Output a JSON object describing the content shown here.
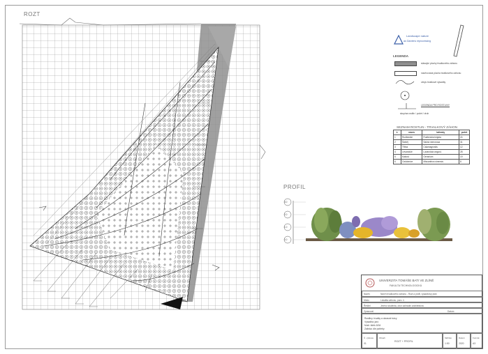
{
  "plan": {
    "title": "ROZT"
  },
  "logo": {
    "line1": "Landscape nature",
    "line2": "as Gardens reprocessing"
  },
  "legend": {
    "title": "LEGENDA",
    "items": [
      "stávající plochy trvalkového záhonu",
      "navrhovaná plocha trvalkového záhonu",
      "obrys trvalkové výsadby",
      "LEGENDA PRO ROSTLINY"
    ],
    "sub_caption": "skupina rostlin / počet / druh"
  },
  "species_table": {
    "title": "SEZNAM ROSTLIN - TRVALKOVÝ ZÁHON",
    "headers": [
      "č.",
      "název",
      "latinsky",
      "počet"
    ],
    "rows": [
      [
        "1",
        "Rudbeckie",
        "Rudbeckia fulgida",
        "24"
      ],
      [
        "2",
        "Šalvěj",
        "Salvia nemorosa",
        "31"
      ],
      [
        "3",
        "Třtina",
        "Calamagrostis",
        "12"
      ],
      [
        "4",
        "Levandule",
        "Lavandula angust.",
        "28"
      ],
      [
        "5",
        "Kakost",
        "Geranium",
        "19"
      ],
      [
        "6",
        "Ozdobnice",
        "Miscanthus sinensis",
        "8"
      ]
    ]
  },
  "section": {
    "title": "PROFIL",
    "scale_marks": [
      "3,0",
      "2,0",
      "1,0",
      "0,0"
    ]
  },
  "title_block": {
    "university": "UNIVERZITA TOMÁŠE BATI VE ZLÍNĚ",
    "faculty": "FAKULTA TECHNOLOGICKÁ",
    "rows": [
      {
        "label": "Název",
        "value": "Návrh trvalkového záhonu - Rozt a profil, výsadbový plán"
      },
      {
        "label": "Místo",
        "value": "Lokalita záhonu, parc. č."
      },
      {
        "label": "Řešitel",
        "value": "Jméno studenta, obor zahradní architektura"
      }
    ],
    "subheader_left": "Zpracoval",
    "subheader_right": "Datum",
    "notes": [
      "Rostliny: trvalky a okrasné trávy",
      "Výsadba: jaro",
      "Mulč: štěrk 8/16",
      "Zálivka: dle potřeby"
    ],
    "footer": [
      {
        "label": "Č. výkresu",
        "value": "01"
      },
      {
        "label": "Obsah",
        "value": "ROZT + PROFIL"
      },
      {
        "label": "Měřítko",
        "value": "1:50"
      },
      {
        "label": "Datum",
        "value": "2020"
      },
      {
        "label": "Formát",
        "value": "A3"
      }
    ]
  }
}
